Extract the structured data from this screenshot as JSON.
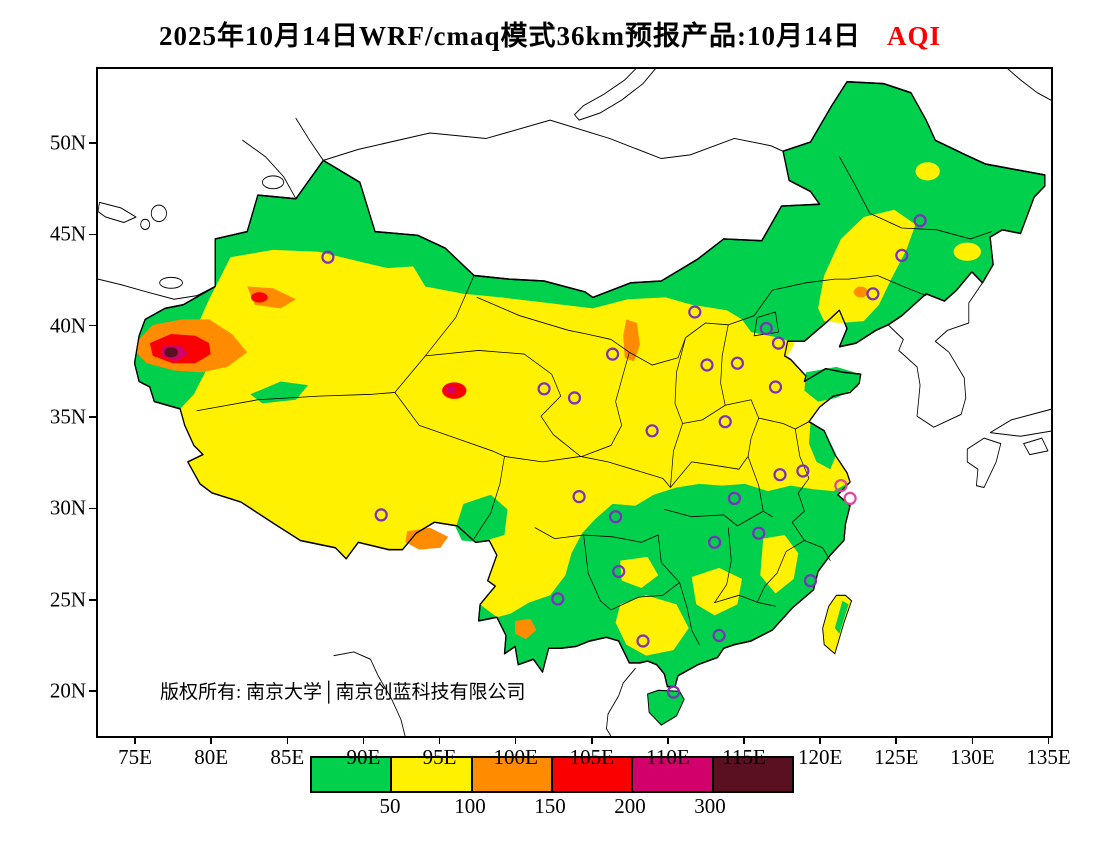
{
  "title": {
    "main": "2025年10月14日WRF/cmaq模式36km预报产品:10月14日",
    "pollutant": "AQI",
    "pollutant_color": "#ff0000"
  },
  "axes": {
    "lat_ticks": [
      "50N",
      "45N",
      "40N",
      "35N",
      "30N",
      "25N",
      "20N"
    ],
    "lon_ticks": [
      "75E",
      "80E",
      "85E",
      "90E",
      "95E",
      "100E",
      "105E",
      "110E",
      "115E",
      "120E",
      "125E",
      "130E",
      "135E"
    ]
  },
  "copyright": "版权所有: 南京大学│南京创蓝科技有限公司",
  "legend": {
    "labels": [
      "50",
      "100",
      "150",
      "200",
      "300"
    ],
    "colors": [
      "#00d04c",
      "#fff100",
      "#ff8c00",
      "#fa0000",
      "#d2006b",
      "#5a1020"
    ]
  },
  "map": {
    "marker_color": "#7d2fbe",
    "highlight_color": "#e0459e",
    "city_markers": [
      [
        87.6,
        43.8
      ],
      [
        126.5,
        45.8
      ],
      [
        125.3,
        43.9
      ],
      [
        123.4,
        41.8
      ],
      [
        111.7,
        40.8
      ],
      [
        116.4,
        39.9
      ],
      [
        117.2,
        39.1
      ],
      [
        114.5,
        38.0
      ],
      [
        112.5,
        37.9
      ],
      [
        106.3,
        38.5
      ],
      [
        103.8,
        36.1
      ],
      [
        101.8,
        36.6
      ],
      [
        108.9,
        34.3
      ],
      [
        113.7,
        34.8
      ],
      [
        117.0,
        36.7
      ],
      [
        117.3,
        31.9
      ],
      [
        118.8,
        32.1
      ],
      [
        114.3,
        30.6
      ],
      [
        113.0,
        28.2
      ],
      [
        115.9,
        28.7
      ],
      [
        119.3,
        26.1
      ],
      [
        113.3,
        23.1
      ],
      [
        108.3,
        22.8
      ],
      [
        106.7,
        26.6
      ],
      [
        104.1,
        30.7
      ],
      [
        106.5,
        29.6
      ],
      [
        102.7,
        25.1
      ],
      [
        91.1,
        29.7
      ],
      [
        110.3,
        20.0
      ]
    ],
    "highlight_markers": [
      [
        121.3,
        31.3
      ],
      [
        121.9,
        30.6
      ]
    ]
  }
}
